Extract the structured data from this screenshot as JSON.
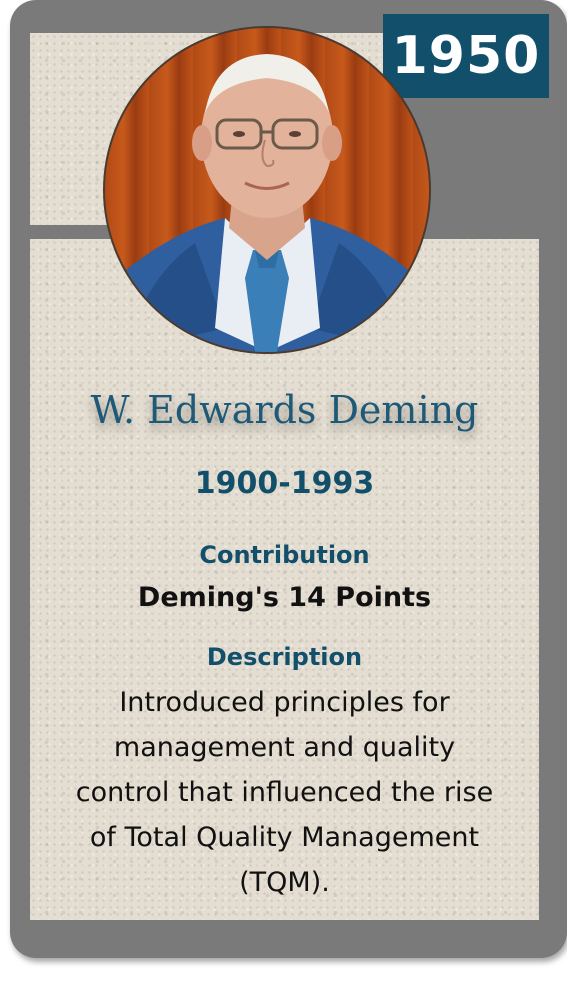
{
  "card": {
    "year": "1950",
    "name": "W. Edwards Deming",
    "lifespan": "1900-1993",
    "contribution_label": "Contribution",
    "contribution_value": "Deming's 14 Points",
    "description_label": "Description",
    "description_lines": [
      "Introduced principles for",
      "management and quality",
      "control that influenced the rise",
      "of Total Quality Management",
      "(TQM)."
    ]
  },
  "colors": {
    "frame": "#7a7a7a",
    "parchment": "#e4ddd1",
    "accent": "#124f6b",
    "name": "#1e5a78"
  },
  "portrait": {
    "icon": "portrait-photo"
  }
}
